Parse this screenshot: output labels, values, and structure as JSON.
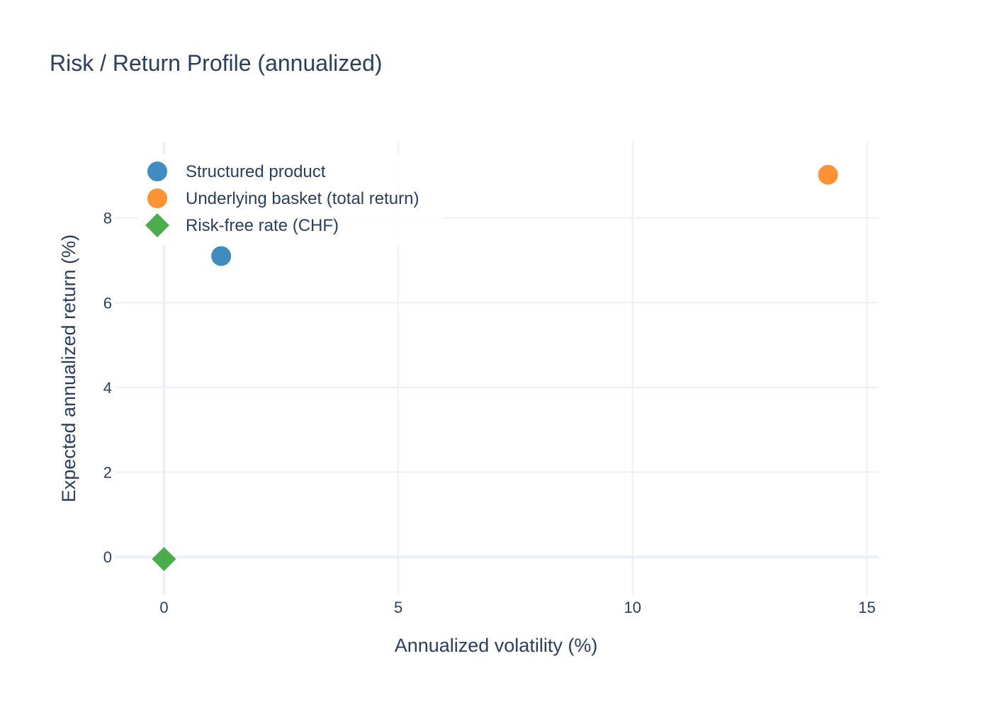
{
  "chart_data": {
    "type": "scatter",
    "title": "Risk / Return Profile (annualized)",
    "xlabel": "Annualized volatility (%)",
    "ylabel": "Expected annualized return (%)",
    "xlim": [
      -1.05,
      15.25
    ],
    "ylim": [
      -0.9,
      9.8
    ],
    "xticks": [
      0,
      5,
      10,
      15
    ],
    "yticks": [
      0,
      2,
      4,
      6,
      8
    ],
    "grid": true,
    "legend_position": "top-left",
    "series": [
      {
        "name": "Structured product",
        "color": "#1f77b4",
        "marker": "circle",
        "x": [
          1.22
        ],
        "y": [
          7.1
        ]
      },
      {
        "name": "Underlying basket (total return)",
        "color": "#ff7f0e",
        "marker": "circle",
        "x": [
          14.17
        ],
        "y": [
          9.02
        ]
      },
      {
        "name": "Risk-free rate (CHF)",
        "color": "#2ca02c",
        "marker": "diamond",
        "x": [
          0.0
        ],
        "y": [
          -0.05
        ]
      }
    ]
  }
}
